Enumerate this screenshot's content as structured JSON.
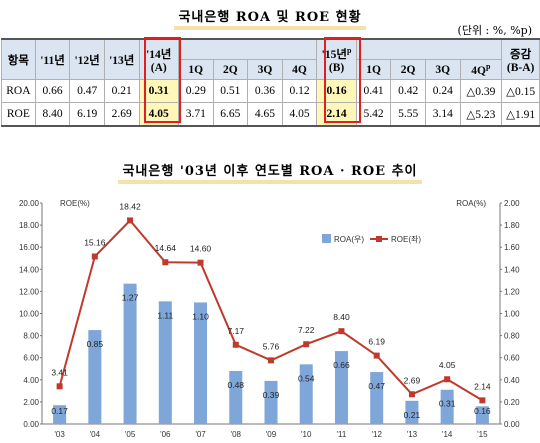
{
  "table_title": "국내은행 ROA 및 ROE 현황",
  "unit": "(단위 : %, %p)",
  "table": {
    "h_item": "항목",
    "h_11": "'11년",
    "h_12": "'12년",
    "h_13": "'13년",
    "h_14_top": "'14년",
    "h_14_bot": "(A)",
    "h_15_top": "'15년",
    "h_15_sup": "p",
    "h_15_bot": "(B)",
    "h_diff_top": "증감",
    "h_diff_bot": "(B-A)",
    "q1": "1Q",
    "q2": "2Q",
    "q3": "3Q",
    "q4": "4Q",
    "q4p": "4Q",
    "q4p_sup": "p",
    "rows": [
      {
        "name": "ROA",
        "v11": "0.66",
        "v12": "0.47",
        "v13": "0.21",
        "v14": "0.31",
        "q14_1": "0.29",
        "q14_2": "0.51",
        "q14_3": "0.36",
        "q14_4": "0.12",
        "v15": "0.16",
        "q15_1": "0.41",
        "q15_2": "0.42",
        "q15_3": "0.24",
        "q15_4": "△0.39",
        "diff": "△0.15"
      },
      {
        "name": "ROE",
        "v11": "8.40",
        "v12": "6.19",
        "v13": "2.69",
        "v14": "4.05",
        "q14_1": "3.71",
        "q14_2": "6.65",
        "q14_3": "4.65",
        "q14_4": "4.05",
        "v15": "2.14",
        "q15_1": "5.42",
        "q15_2": "5.55",
        "q15_3": "3.14",
        "q15_4": "△5.23",
        "diff": "△1.91"
      }
    ]
  },
  "chart_title": "국내은행 '03년 이후 연도별 ROA · ROE 추이",
  "chart_data": {
    "type": "bar+line",
    "title": "국내은행 '03년 이후 연도별 ROA · ROE 추이",
    "categories": [
      "'03",
      "'04",
      "'05",
      "'06",
      "'07",
      "'08",
      "'09",
      "'10",
      "'11",
      "'12",
      "'13",
      "'14",
      "'15"
    ],
    "series": [
      {
        "name": "ROA(우)",
        "type": "bar",
        "axis": "right",
        "color": "#7ea6d8",
        "values": [
          0.17,
          0.85,
          1.27,
          1.11,
          1.1,
          0.48,
          0.39,
          0.54,
          0.66,
          0.47,
          0.21,
          0.31,
          0.16
        ]
      },
      {
        "name": "ROE(좌)",
        "type": "line",
        "axis": "left",
        "color": "#c0392b",
        "values": [
          3.41,
          15.16,
          18.42,
          14.64,
          14.6,
          7.17,
          5.76,
          7.22,
          8.4,
          6.19,
          2.69,
          4.05,
          2.14
        ]
      }
    ],
    "left_axis": {
      "label": "ROE(%)",
      "ylim": [
        0,
        20
      ],
      "ticks": [
        "0.00",
        "2.00",
        "4.00",
        "6.00",
        "8.00",
        "10.00",
        "12.00",
        "14.00",
        "16.00",
        "18.00",
        "20.00"
      ]
    },
    "right_axis": {
      "label": "ROA(%)",
      "ylim": [
        0,
        2
      ],
      "ticks": [
        "0.00",
        "0.20",
        "0.40",
        "0.60",
        "0.80",
        "1.00",
        "1.20",
        "1.40",
        "1.60",
        "1.80",
        "2.00"
      ]
    },
    "legend_position": "upper-right",
    "grid": false
  }
}
